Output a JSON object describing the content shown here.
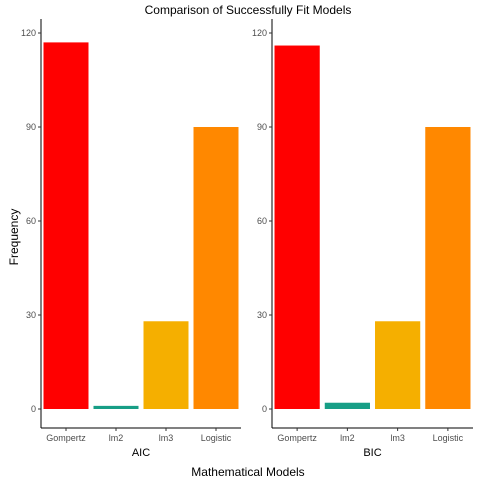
{
  "chart_data": {
    "type": "bar",
    "title": "Comparison of Successfully Fit Models",
    "xlabel": "Mathematical Models",
    "ylabel": "Frequency",
    "categories": [
      "Gompertz",
      "lm2",
      "lm3",
      "Logistic"
    ],
    "colors": [
      "#FF0000",
      "#179E86",
      "#F5AF00",
      "#FF8800"
    ],
    "ylim": [
      0,
      120
    ],
    "yticks": [
      0,
      30,
      60,
      90,
      120
    ],
    "grid": false,
    "legend": "none",
    "panels": [
      {
        "label": "AIC",
        "values": [
          117,
          1,
          28,
          90
        ]
      },
      {
        "label": "BIC",
        "values": [
          116,
          2,
          28,
          90
        ]
      }
    ]
  }
}
